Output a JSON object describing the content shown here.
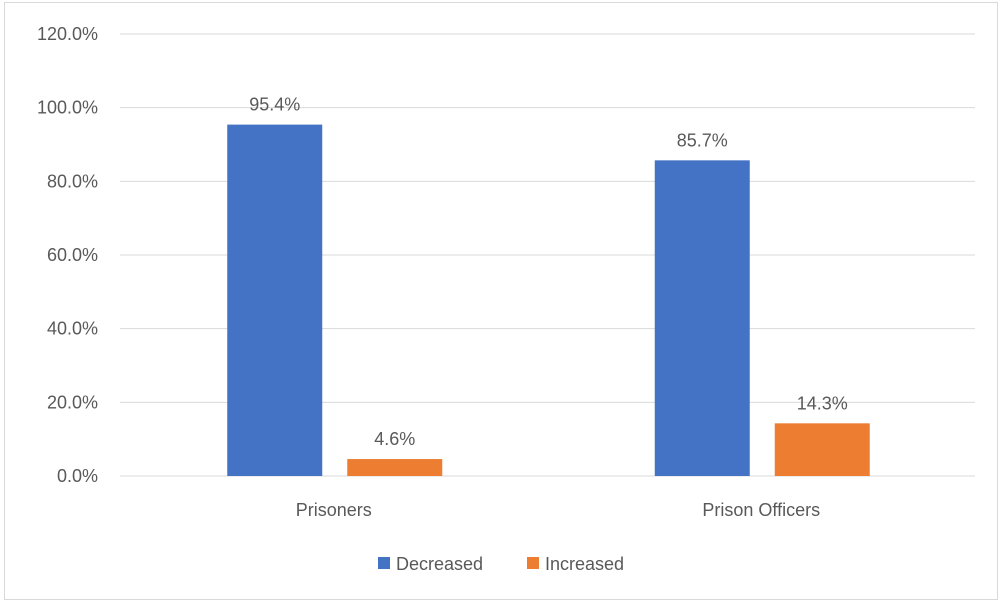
{
  "chart_data": {
    "type": "bar",
    "title": "",
    "xlabel": "",
    "ylabel": "",
    "categories": [
      "Prisoners",
      "Prison Officers"
    ],
    "series": [
      {
        "name": "Decreased",
        "values": [
          95.4,
          85.7
        ],
        "labels": [
          "95.4%",
          "85.7%"
        ],
        "color": "#4472C4"
      },
      {
        "name": "Increased",
        "values": [
          4.6,
          14.3
        ],
        "labels": [
          "4.6%",
          "14.3%"
        ],
        "color": "#ED7D31"
      }
    ],
    "ylim": [
      0,
      120
    ],
    "yticks": [
      0,
      20,
      40,
      60,
      80,
      100,
      120
    ],
    "ytick_labels": [
      "0.0%",
      "20.0%",
      "40.0%",
      "60.0%",
      "80.0%",
      "100.0%",
      "120.0%"
    ],
    "grid": true,
    "legend": "bottom-center"
  }
}
